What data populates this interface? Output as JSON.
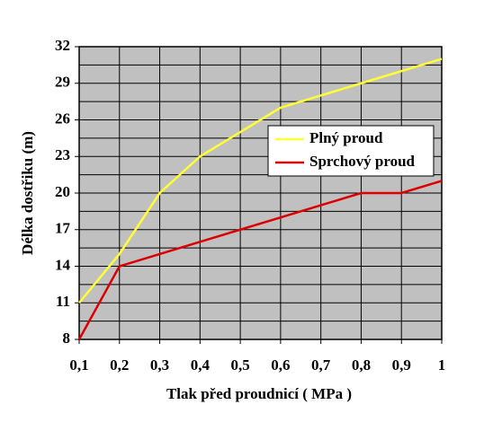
{
  "chart_data": {
    "type": "line",
    "x_label": "Tlak před proudnicí ( MPa )",
    "y_label": "Délka dostřiku (m)",
    "x": [
      0.1,
      0.2,
      0.3,
      0.4,
      0.5,
      0.6,
      0.7,
      0.8,
      0.9,
      1
    ],
    "series": [
      {
        "name": "Plný proud",
        "color": "#ffff33",
        "values": [
          11,
          15,
          20,
          23,
          25,
          27,
          28,
          29,
          30,
          31
        ]
      },
      {
        "name": "Sprchový proud",
        "color": "#dd0000",
        "values": [
          8,
          14,
          15,
          16,
          17,
          18,
          19,
          20,
          20,
          21
        ]
      }
    ],
    "xlim": [
      0.1,
      1
    ],
    "xticks": [
      {
        "value": 0.1,
        "label": "0,1"
      },
      {
        "value": 0.2,
        "label": "0,2"
      },
      {
        "value": 0.3,
        "label": "0,3"
      },
      {
        "value": 0.4,
        "label": "0,4"
      },
      {
        "value": 0.5,
        "label": "0,5"
      },
      {
        "value": 0.6,
        "label": "0,6"
      },
      {
        "value": 0.7,
        "label": "0,7"
      },
      {
        "value": 0.8,
        "label": "0,8"
      },
      {
        "value": 0.9,
        "label": "0,9"
      },
      1
    ],
    "ylim": [
      8,
      32
    ],
    "yticks": [
      8,
      11,
      14,
      17,
      20,
      23,
      26,
      29,
      32
    ],
    "grid": true,
    "plot_background": "#c0c0c0",
    "legend": "right"
  }
}
